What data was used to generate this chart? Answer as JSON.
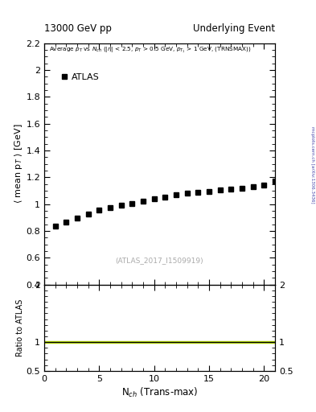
{
  "title_left": "13000 GeV pp",
  "title_right": "Underlying Event",
  "ylabel_main": "$\\langle$ mean p$_T$ $\\rangle$ [GeV]",
  "ylabel_ratio": "Ratio to ATLAS",
  "xlabel": "N$_{ch}$ (Trans-max)",
  "watermark": "(ATLAS_2017_I1509919)",
  "right_label": "mcplots.cern.ch [arXiv:1306.3436]",
  "legend_label": "ATLAS",
  "xlim": [
    0,
    21
  ],
  "ylim_main": [
    0.4,
    2.2
  ],
  "ylim_ratio": [
    0.5,
    2.0
  ],
  "yticks_main": [
    0.4,
    0.6,
    0.8,
    1.0,
    1.2,
    1.4,
    1.6,
    1.8,
    2.0,
    2.2
  ],
  "yticks_ratio": [
    0.5,
    1.0,
    2.0
  ],
  "ytick_labels_ratio": [
    "0.5",
    "1",
    "2"
  ],
  "data_x": [
    1,
    2,
    3,
    4,
    5,
    6,
    7,
    8,
    9,
    10,
    11,
    12,
    13,
    14,
    15,
    16,
    17,
    18,
    19,
    20,
    21
  ],
  "data_y": [
    0.835,
    0.865,
    0.895,
    0.925,
    0.955,
    0.975,
    0.99,
    1.005,
    1.025,
    1.04,
    1.055,
    1.07,
    1.08,
    1.09,
    1.095,
    1.105,
    1.11,
    1.12,
    1.13,
    1.14,
    1.17
  ],
  "marker_color": "black",
  "marker_style": "s",
  "marker_size": 4,
  "ratio_line_color": "black",
  "ratio_band_color": "#aacc00",
  "background_color": "white"
}
